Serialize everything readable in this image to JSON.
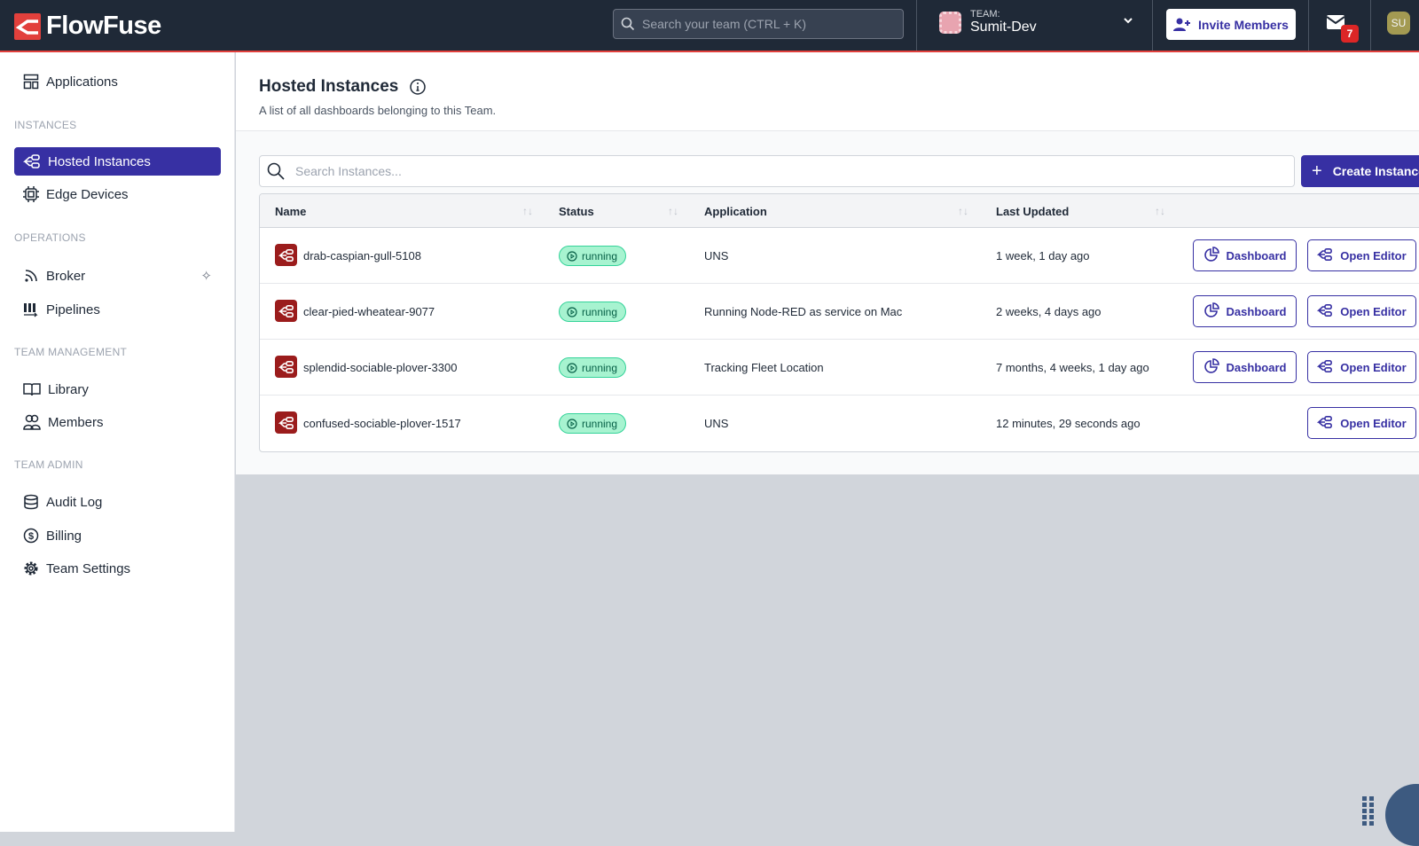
{
  "header": {
    "brand": "FlowFuse",
    "search_placeholder": "Search your team (CTRL + K)",
    "team_label": "TEAM:",
    "team_name": "Sumit-Dev",
    "invite_label": "Invite Members",
    "notification_count": "7",
    "user_initials": "SU"
  },
  "sidebar": {
    "applications": "Applications",
    "sections": [
      {
        "title": "INSTANCES",
        "items": [
          "Hosted Instances",
          "Edge Devices"
        ]
      },
      {
        "title": "OPERATIONS",
        "items": [
          "Broker",
          "Pipelines"
        ]
      },
      {
        "title": "TEAM MANAGEMENT",
        "items": [
          "Library",
          "Members"
        ]
      },
      {
        "title": "TEAM ADMIN",
        "items": [
          "Audit Log",
          "Billing",
          "Team Settings"
        ]
      }
    ],
    "active": "Hosted Instances"
  },
  "main": {
    "title": "Hosted Instances",
    "subtitle": "A list of all dashboards belonging to this Team.",
    "search_placeholder": "Search Instances...",
    "create_label": "Create Instance",
    "columns": [
      "Name",
      "Status",
      "Application",
      "Last Updated"
    ],
    "rows": [
      {
        "name": "drab-caspian-gull-5108",
        "status": "running",
        "application": "UNS",
        "updated": "1 week, 1 day ago",
        "dashboard": "Dashboard",
        "editor": "Open Editor"
      },
      {
        "name": "clear-pied-wheatear-9077",
        "status": "running",
        "application": "Running Node-RED as service on Mac",
        "updated": "2 weeks, 4 days ago",
        "dashboard": "Dashboard",
        "editor": "Open Editor"
      },
      {
        "name": "splendid-sociable-plover-3300",
        "status": "running",
        "application": "Tracking Fleet Location",
        "updated": "7 months, 4 weeks, 1 day ago",
        "dashboard": "Dashboard",
        "editor": "Open Editor"
      },
      {
        "name": "confused-sociable-plover-1517",
        "status": "running",
        "application": "UNS",
        "updated": "12 minutes, 29 seconds ago",
        "editor": "Open Editor"
      }
    ]
  },
  "colors": {
    "accent": "#3730a3",
    "header_bg": "#1f2937",
    "brand_red": "#e2403c",
    "running_bg": "#a7f3d0"
  }
}
